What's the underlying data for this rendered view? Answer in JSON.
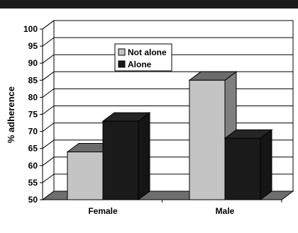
{
  "chart_data": {
    "type": "bar",
    "categories": [
      "Female",
      "Male"
    ],
    "series": [
      {
        "name": "Not alone",
        "values": [
          64,
          85
        ]
      },
      {
        "name": "Alone",
        "values": [
          73,
          68
        ]
      }
    ],
    "title": "",
    "xlabel": "",
    "ylabel": "% adherence",
    "ylim": [
      50,
      100
    ],
    "yticks": [
      50,
      55,
      60,
      65,
      70,
      75,
      80,
      85,
      90,
      95,
      100
    ],
    "grid": true,
    "legend": "top-center",
    "colors": {
      "Not alone": "#c4c4c4",
      "Alone": "#1a1a1a"
    },
    "style": "3d-bar"
  }
}
